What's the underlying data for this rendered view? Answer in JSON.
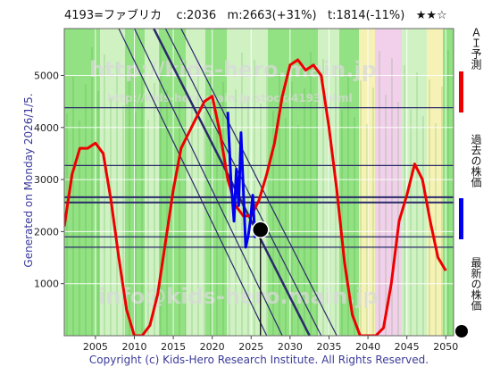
{
  "header": {
    "code": "4193=ファブリカ",
    "current": "c:2036",
    "max": "m:2663(+31%)",
    "target": "t:1814(-11%)",
    "rating": "★★☆"
  },
  "side_label": "Generated on Monday 2026/1/5.",
  "copyright": "Copyright (c) Kids-Hero Research Institute. All Rights Reserved.",
  "watermark": {
    "line1": "http://kids-hero.main.jp",
    "line2": "http://kids-hero.main.jp/stock/4193.html",
    "line3": "info@kids-hero.main.jp"
  },
  "legend": {
    "ai": "ＡＩ予測",
    "past": "過去の株価",
    "latest": "最新の株価"
  },
  "colors": {
    "prediction": "#ee0000",
    "past": "#0000ee",
    "latest": "#000000",
    "band_green": "#7fdc6c",
    "band_light": "#c8f0b8",
    "band_yellow": "#f5f0a8",
    "band_pink": "#f0c8e8",
    "line_navy": "#2a2a6a"
  },
  "chart_data": {
    "type": "line",
    "x_ticks": [
      2005,
      2010,
      2015,
      2020,
      2025,
      2030,
      2035,
      2040,
      2045,
      2050
    ],
    "y_ticks": [
      1000,
      2000,
      3000,
      4000,
      5000
    ],
    "xlim": [
      2001,
      2051
    ],
    "ylim": [
      0,
      5900
    ],
    "horizontal_levels": [
      4380,
      3270,
      2660,
      2560,
      1900,
      1700
    ],
    "channel_lines": [
      [
        [
          2008,
          5900
        ],
        [
          2027,
          0
        ]
      ],
      [
        [
          2010,
          5900
        ],
        [
          2029,
          0
        ]
      ],
      [
        [
          2012.5,
          5900
        ],
        [
          2032.5,
          0
        ]
      ],
      [
        [
          2014,
          5900
        ],
        [
          2034,
          0
        ]
      ],
      [
        [
          2016,
          5900
        ],
        [
          2036,
          0
        ]
      ]
    ],
    "series": [
      {
        "name": "ＡＩ予測",
        "points": [
          [
            2001,
            2100
          ],
          [
            2002,
            3100
          ],
          [
            2003,
            3600
          ],
          [
            2004,
            3600
          ],
          [
            2005,
            3700
          ],
          [
            2006,
            3500
          ],
          [
            2007,
            2600
          ],
          [
            2008,
            1500
          ],
          [
            2009,
            500
          ],
          [
            2010,
            0
          ],
          [
            2011,
            0
          ],
          [
            2012,
            200
          ],
          [
            2013,
            800
          ],
          [
            2014,
            1800
          ],
          [
            2015,
            2800
          ],
          [
            2016,
            3600
          ],
          [
            2017,
            3900
          ],
          [
            2018,
            4200
          ],
          [
            2019,
            4500
          ],
          [
            2020,
            4600
          ],
          [
            2021,
            3900
          ],
          [
            2022,
            3000
          ],
          [
            2023,
            2500
          ],
          [
            2024,
            2300
          ],
          [
            2025,
            2300
          ],
          [
            2026,
            2600
          ],
          [
            2027,
            3100
          ],
          [
            2028,
            3700
          ],
          [
            2029,
            4600
          ],
          [
            2030,
            5200
          ],
          [
            2031,
            5300
          ],
          [
            2032,
            5100
          ],
          [
            2033,
            5200
          ],
          [
            2034,
            5000
          ],
          [
            2035,
            4000
          ],
          [
            2036,
            2800
          ],
          [
            2037,
            1400
          ],
          [
            2038,
            400
          ],
          [
            2039,
            0
          ],
          [
            2040,
            0
          ],
          [
            2041,
            0
          ],
          [
            2042,
            150
          ],
          [
            2043,
            1000
          ],
          [
            2044,
            2200
          ],
          [
            2045,
            2700
          ],
          [
            2046,
            3300
          ],
          [
            2047,
            3000
          ],
          [
            2048,
            2200
          ],
          [
            2049,
            1500
          ],
          [
            2050,
            1250
          ]
        ]
      },
      {
        "name": "過去の株価",
        "points": [
          [
            2022.0,
            4300
          ],
          [
            2022.4,
            3000
          ],
          [
            2022.8,
            2200
          ],
          [
            2023.1,
            3200
          ],
          [
            2023.4,
            2500
          ],
          [
            2023.7,
            3900
          ],
          [
            2024.0,
            2800
          ],
          [
            2024.3,
            1700
          ],
          [
            2024.6,
            1900
          ],
          [
            2024.9,
            2200
          ],
          [
            2025.2,
            2700
          ],
          [
            2025.5,
            1900
          ],
          [
            2025.8,
            2050
          ]
        ]
      }
    ],
    "latest_point": [
      2026.2,
      2036
    ]
  }
}
